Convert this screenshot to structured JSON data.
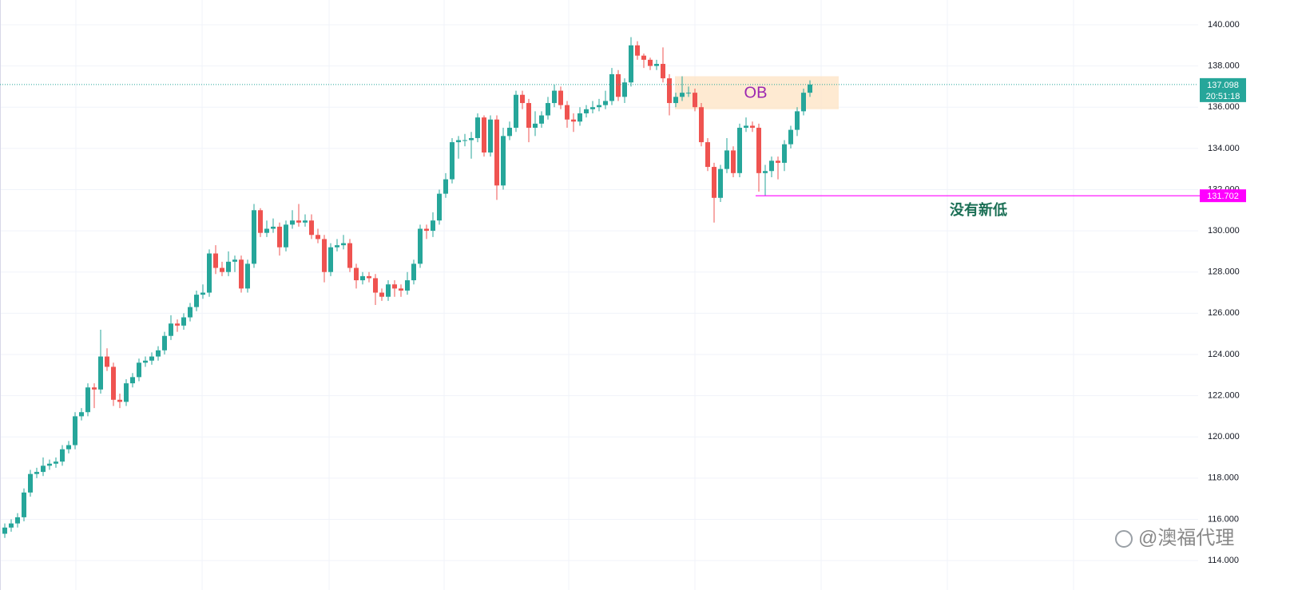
{
  "chart_data": {
    "type": "candlestick",
    "up_color": "#26a69a",
    "down_color": "#ef5350",
    "ylim": [
      112.57,
      141.2
    ],
    "yticks": [
      {
        "value": 114,
        "label": "114.000"
      },
      {
        "value": 116,
        "label": "116.000"
      },
      {
        "value": 118,
        "label": "118.000"
      },
      {
        "value": 120,
        "label": "120.000"
      },
      {
        "value": 122,
        "label": "122.000"
      },
      {
        "value": 124,
        "label": "124.000"
      },
      {
        "value": 126,
        "label": "126.000"
      },
      {
        "value": 128,
        "label": "128.000"
      },
      {
        "value": 130,
        "label": "130.000"
      },
      {
        "value": 132,
        "label": "132.000"
      },
      {
        "value": 134,
        "label": "134.000"
      },
      {
        "value": 136,
        "label": "136.000"
      },
      {
        "value": 138,
        "label": "138.000"
      },
      {
        "value": 140,
        "label": "140.000"
      }
    ],
    "grid": true,
    "candles": [
      [
        115.3,
        115.8,
        115.1,
        115.6
      ],
      [
        115.6,
        116.0,
        115.4,
        115.8
      ],
      [
        115.8,
        116.3,
        115.6,
        116.1
      ],
      [
        116.1,
        117.5,
        115.9,
        117.3
      ],
      [
        117.3,
        118.4,
        117.1,
        118.2
      ],
      [
        118.2,
        118.5,
        118.0,
        118.3
      ],
      [
        118.3,
        119.0,
        118.1,
        118.6
      ],
      [
        118.6,
        118.9,
        118.4,
        118.7
      ],
      [
        118.7,
        119.0,
        118.5,
        118.8
      ],
      [
        118.8,
        119.6,
        118.6,
        119.4
      ],
      [
        119.4,
        119.8,
        119.2,
        119.6
      ],
      [
        119.6,
        121.2,
        119.4,
        121.0
      ],
      [
        121.0,
        121.4,
        120.8,
        121.2
      ],
      [
        121.2,
        122.6,
        121.0,
        122.4
      ],
      [
        122.4,
        122.6,
        121.4,
        122.3
      ],
      [
        122.3,
        125.2,
        122.1,
        123.9
      ],
      [
        123.9,
        124.3,
        123.2,
        123.4
      ],
      [
        123.4,
        123.6,
        121.5,
        121.8
      ],
      [
        121.8,
        122.1,
        121.4,
        121.7
      ],
      [
        121.7,
        122.8,
        121.5,
        122.6
      ],
      [
        122.6,
        123.1,
        122.4,
        122.9
      ],
      [
        122.9,
        123.8,
        122.7,
        123.6
      ],
      [
        123.6,
        123.9,
        123.4,
        123.7
      ],
      [
        123.7,
        124.1,
        123.5,
        123.9
      ],
      [
        123.9,
        124.4,
        123.7,
        124.2
      ],
      [
        124.2,
        125.1,
        124.0,
        124.9
      ],
      [
        124.9,
        125.9,
        124.7,
        125.5
      ],
      [
        125.5,
        125.7,
        125.1,
        125.4
      ],
      [
        125.4,
        126.0,
        125.2,
        125.8
      ],
      [
        125.8,
        126.5,
        125.6,
        126.3
      ],
      [
        126.3,
        127.1,
        126.1,
        126.9
      ],
      [
        126.9,
        127.4,
        126.7,
        127.0
      ],
      [
        127.0,
        129.1,
        126.8,
        128.9
      ],
      [
        128.9,
        129.3,
        127.9,
        128.2
      ],
      [
        128.2,
        128.5,
        127.8,
        128.0
      ],
      [
        128.0,
        129.0,
        127.8,
        128.5
      ],
      [
        128.5,
        128.8,
        128.0,
        128.6
      ],
      [
        128.6,
        128.8,
        127.0,
        127.2
      ],
      [
        127.2,
        128.6,
        127.0,
        128.4
      ],
      [
        128.4,
        131.3,
        128.2,
        131.0
      ],
      [
        131.0,
        131.1,
        129.7,
        129.9
      ],
      [
        129.9,
        130.5,
        129.7,
        130.1
      ],
      [
        130.1,
        130.6,
        129.9,
        130.2
      ],
      [
        130.2,
        130.4,
        128.8,
        129.2
      ],
      [
        129.2,
        130.5,
        129.0,
        130.3
      ],
      [
        130.3,
        131.0,
        130.1,
        130.5
      ],
      [
        130.5,
        131.3,
        130.2,
        130.4
      ],
      [
        130.4,
        130.8,
        130.2,
        130.5
      ],
      [
        130.5,
        130.8,
        129.6,
        129.8
      ],
      [
        129.8,
        130.1,
        129.4,
        129.6
      ],
      [
        129.6,
        129.8,
        127.5,
        128.0
      ],
      [
        128.0,
        129.4,
        127.8,
        129.2
      ],
      [
        129.2,
        129.6,
        129.0,
        129.3
      ],
      [
        129.3,
        129.8,
        129.1,
        129.4
      ],
      [
        129.4,
        129.6,
        128.0,
        128.2
      ],
      [
        128.2,
        128.4,
        127.2,
        127.6
      ],
      [
        127.6,
        128.0,
        127.4,
        127.8
      ],
      [
        127.8,
        128.0,
        127.5,
        127.7
      ],
      [
        127.7,
        127.9,
        126.4,
        127.0
      ],
      [
        127.0,
        127.2,
        126.6,
        126.8
      ],
      [
        126.8,
        127.6,
        126.6,
        127.4
      ],
      [
        127.4,
        127.6,
        126.8,
        127.2
      ],
      [
        127.2,
        127.4,
        126.8,
        127.1
      ],
      [
        127.1,
        128.0,
        126.9,
        127.6
      ],
      [
        127.6,
        128.6,
        127.4,
        128.4
      ],
      [
        128.4,
        130.3,
        128.2,
        130.1
      ],
      [
        130.1,
        130.3,
        129.6,
        130.0
      ],
      [
        130.0,
        130.9,
        129.7,
        130.5
      ],
      [
        130.5,
        132.0,
        130.3,
        131.8
      ],
      [
        131.8,
        132.8,
        131.6,
        132.5
      ],
      [
        132.5,
        134.5,
        132.3,
        134.3
      ],
      [
        134.3,
        134.6,
        133.5,
        134.4
      ],
      [
        134.4,
        134.7,
        134.1,
        134.4
      ],
      [
        134.4,
        134.8,
        133.5,
        134.5
      ],
      [
        134.5,
        135.7,
        134.3,
        135.5
      ],
      [
        135.5,
        135.6,
        133.6,
        133.8
      ],
      [
        133.8,
        135.6,
        133.6,
        135.4
      ],
      [
        135.4,
        135.6,
        131.5,
        132.2
      ],
      [
        132.2,
        135.0,
        132.0,
        134.6
      ],
      [
        134.6,
        135.3,
        134.4,
        135.0
      ],
      [
        135.0,
        136.8,
        134.8,
        136.6
      ],
      [
        136.6,
        136.8,
        135.9,
        136.2
      ],
      [
        136.2,
        136.4,
        134.3,
        135.0
      ],
      [
        135.0,
        135.8,
        134.6,
        135.2
      ],
      [
        135.2,
        135.8,
        135.0,
        135.6
      ],
      [
        135.6,
        136.5,
        135.4,
        136.2
      ],
      [
        136.2,
        137.1,
        136.0,
        136.8
      ],
      [
        136.8,
        137.0,
        135.9,
        136.1
      ],
      [
        136.1,
        136.3,
        135.0,
        135.4
      ],
      [
        135.4,
        135.7,
        134.8,
        135.3
      ],
      [
        135.3,
        136.0,
        135.1,
        135.7
      ],
      [
        135.7,
        136.1,
        135.5,
        135.9
      ],
      [
        135.9,
        136.3,
        135.7,
        136.0
      ],
      [
        136.0,
        136.4,
        135.8,
        136.1
      ],
      [
        136.1,
        136.8,
        135.9,
        136.3
      ],
      [
        136.3,
        137.9,
        136.1,
        137.6
      ],
      [
        137.6,
        137.8,
        136.3,
        136.5
      ],
      [
        136.5,
        137.4,
        136.2,
        137.2
      ],
      [
        137.2,
        139.4,
        137.0,
        139.0
      ],
      [
        139.0,
        139.2,
        138.3,
        138.5
      ],
      [
        138.5,
        138.6,
        137.9,
        138.3
      ],
      [
        138.3,
        138.4,
        137.8,
        138.0
      ],
      [
        138.0,
        138.3,
        137.8,
        138.1
      ],
      [
        138.1,
        138.9,
        137.2,
        137.4
      ],
      [
        137.4,
        137.6,
        135.6,
        136.2
      ],
      [
        136.2,
        136.7,
        136.0,
        136.5
      ],
      [
        136.5,
        137.5,
        136.3,
        136.7
      ],
      [
        136.7,
        137.0,
        136.5,
        136.7
      ],
      [
        136.7,
        136.9,
        135.8,
        136.0
      ],
      [
        136.0,
        136.2,
        134.1,
        134.3
      ],
      [
        134.3,
        134.5,
        132.9,
        133.1
      ],
      [
        133.1,
        133.3,
        130.4,
        131.6
      ],
      [
        131.6,
        133.2,
        131.4,
        133.0
      ],
      [
        133.0,
        134.5,
        132.8,
        133.9
      ],
      [
        133.9,
        134.1,
        132.6,
        132.8
      ],
      [
        132.8,
        135.2,
        132.6,
        135.0
      ],
      [
        135.0,
        135.5,
        134.8,
        135.1
      ],
      [
        135.1,
        135.3,
        134.8,
        135.0
      ],
      [
        135.0,
        135.2,
        131.9,
        132.8
      ],
      [
        132.8,
        133.2,
        131.7,
        132.9
      ],
      [
        132.9,
        133.6,
        132.6,
        133.4
      ],
      [
        133.4,
        133.6,
        132.5,
        133.3
      ],
      [
        133.3,
        134.4,
        132.9,
        134.2
      ],
      [
        134.2,
        135.1,
        134.0,
        134.9
      ],
      [
        134.9,
        136.0,
        134.6,
        135.8
      ],
      [
        135.8,
        136.9,
        135.6,
        136.7
      ],
      [
        136.7,
        137.3,
        136.5,
        137.098
      ]
    ],
    "last_price_time": "20:51:18",
    "zone": {
      "label": "OB",
      "top": 137.5,
      "bottom": 135.9
    },
    "level": {
      "value": 131.702,
      "text": "没有新低"
    },
    "watermark": "@澳福代理"
  }
}
